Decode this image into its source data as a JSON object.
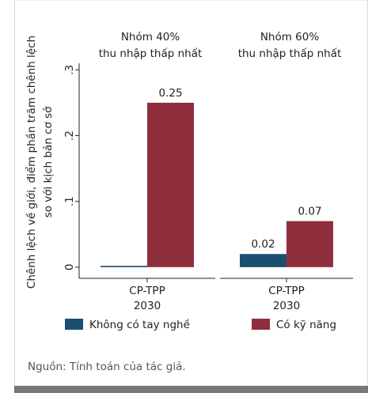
{
  "chart_data": {
    "type": "bar",
    "ylabel": [
      "Chênh lệch về giới, điểm phần trăm chênh lệch",
      "so với kịch bản cơ sở"
    ],
    "ylim": [
      -0.017,
      0.31
    ],
    "yticks": [
      0,
      {
        "value": 0.1,
        "label": ".1"
      },
      {
        "value": 0.2,
        "label": ".2"
      },
      {
        "value": 0.3,
        "label": ".3"
      }
    ],
    "series": [
      {
        "name": "Không có tay nghề",
        "color": "#1b4f72"
      },
      {
        "name": "Có kỹ năng",
        "color": "#8f2f3d"
      }
    ],
    "panels": [
      {
        "title": [
          "Nhóm 40%",
          "thu nhập thấp nhất"
        ],
        "categories": [
          [
            "CP-TPP",
            "2030"
          ]
        ],
        "series": [
          {
            "values": [
              0.002
            ],
            "value_labels": [
              null
            ]
          },
          {
            "values": [
              0.25
            ],
            "value_labels": [
              "0.25"
            ]
          }
        ]
      },
      {
        "title": [
          "Nhóm 60%",
          "thu nhập thấp nhất"
        ],
        "categories": [
          [
            "CP-TPP",
            "2030"
          ]
        ],
        "series": [
          {
            "values": [
              0.02
            ],
            "value_labels": [
              "0.02"
            ]
          },
          {
            "values": [
              0.07
            ],
            "value_labels": [
              "0.07"
            ]
          }
        ]
      }
    ],
    "source": "Nguồn: Tính toán của tác giả."
  }
}
